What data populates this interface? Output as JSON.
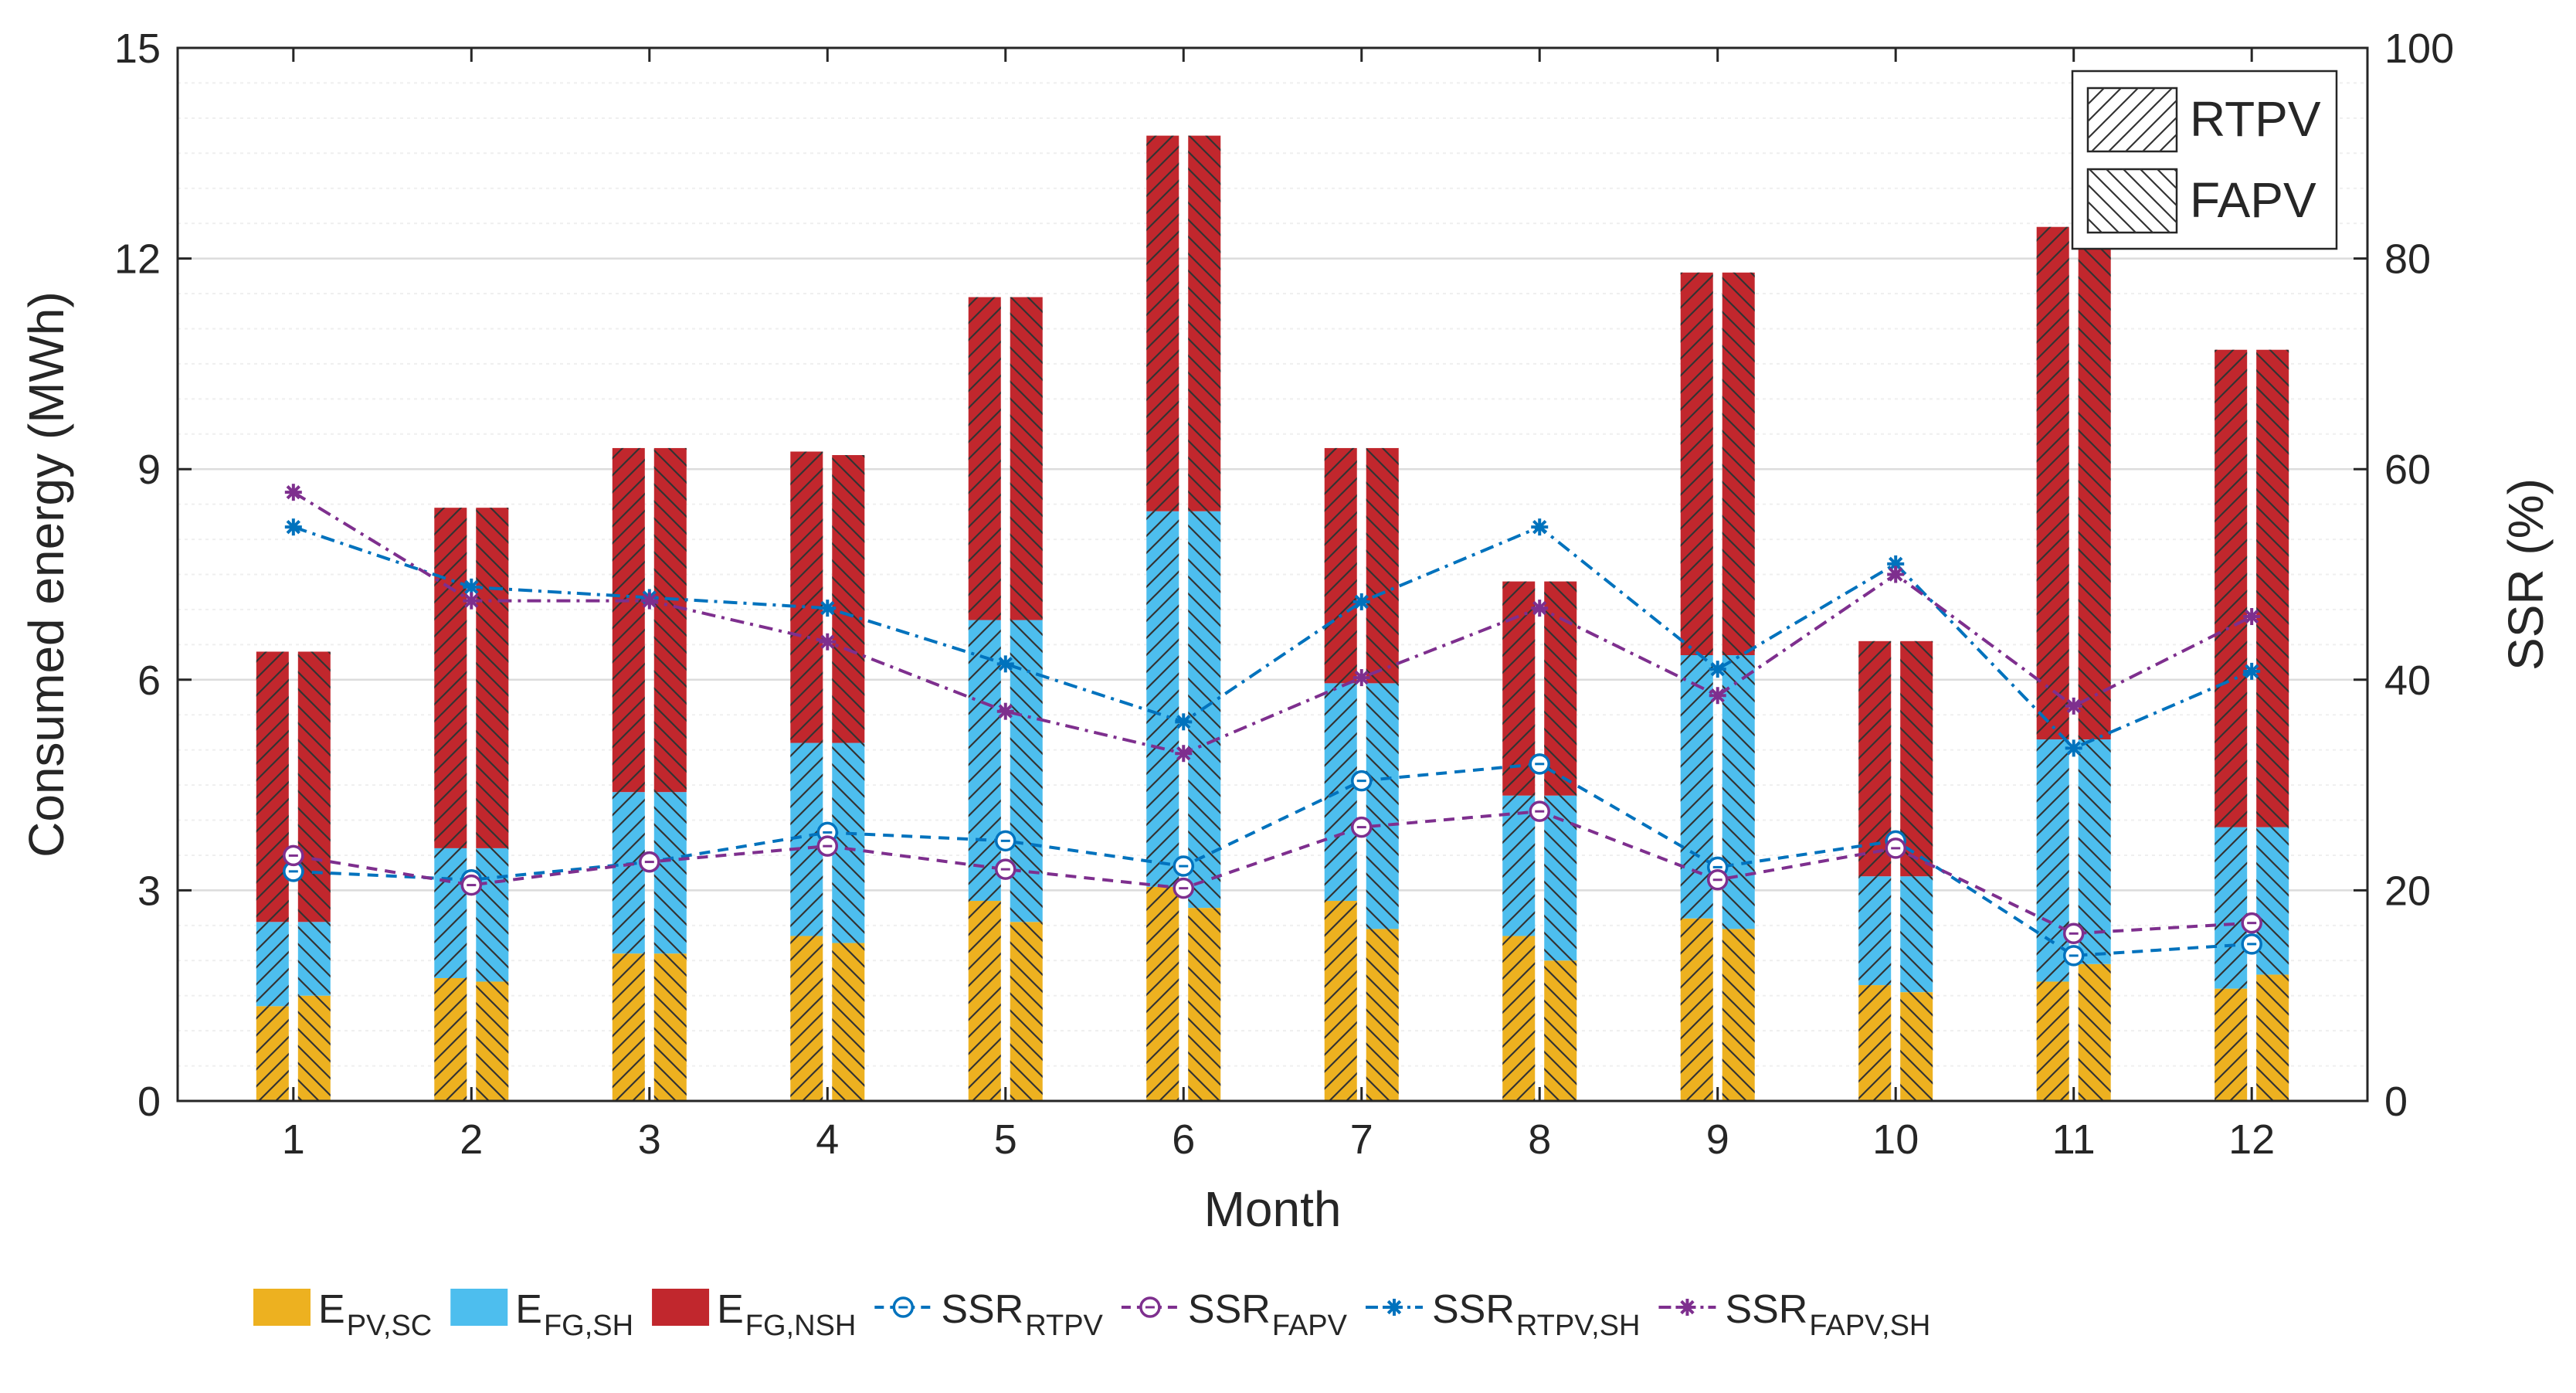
{
  "chart_data": {
    "type": "bar",
    "title": "",
    "xlabel": "Month",
    "ylabel": "Consumed energy (MWh)",
    "y2label": "SSR (%)",
    "categories": [
      "1",
      "2",
      "3",
      "4",
      "5",
      "6",
      "7",
      "8",
      "9",
      "10",
      "11",
      "12"
    ],
    "ylim": [
      0,
      15
    ],
    "y2lim": [
      0,
      100
    ],
    "yticks": [
      0,
      3,
      6,
      9,
      12,
      15
    ],
    "y2ticks": [
      0,
      20,
      40,
      60,
      80,
      100
    ],
    "grid": true,
    "minor_grid": true,
    "bar_groups": [
      {
        "name": "RTPV",
        "hatch": "forward",
        "stacks": [
          {
            "key": "pv_sc",
            "values": [
              1.35,
              1.75,
              2.1,
              2.35,
              2.85,
              3.05,
              2.85,
              2.35,
              2.6,
              1.65,
              1.7,
              1.6
            ]
          },
          {
            "key": "fg_sh",
            "values": [
              1.2,
              1.85,
              2.3,
              2.75,
              4.0,
              5.35,
              3.1,
              2.0,
              3.75,
              1.55,
              3.45,
              2.3
            ]
          },
          {
            "key": "fg_nsh",
            "values": [
              3.85,
              4.85,
              4.9,
              4.15,
              4.6,
              5.35,
              3.35,
              3.05,
              5.45,
              3.35,
              7.3,
              6.8
            ]
          }
        ]
      },
      {
        "name": "FAPV",
        "hatch": "backward",
        "stacks": [
          {
            "key": "pv_sc",
            "values": [
              1.5,
              1.7,
              2.1,
              2.25,
              2.55,
              2.75,
              2.45,
              2.0,
              2.45,
              1.55,
              1.95,
              1.8
            ]
          },
          {
            "key": "fg_sh",
            "values": [
              1.05,
              1.9,
              2.3,
              2.85,
              4.3,
              5.65,
              3.5,
              2.35,
              3.9,
              1.65,
              3.2,
              2.1
            ]
          },
          {
            "key": "fg_nsh",
            "values": [
              3.85,
              4.85,
              4.9,
              4.1,
              4.6,
              5.35,
              3.35,
              3.05,
              5.45,
              3.35,
              7.3,
              6.8
            ]
          }
        ]
      }
    ],
    "series": [
      {
        "name": "SSR_RTPV",
        "axis": "right",
        "style": "dashed",
        "marker": "circle",
        "color": "#0072BD",
        "values": [
          21.8,
          21.0,
          22.7,
          25.5,
          24.7,
          22.3,
          30.4,
          32.0,
          22.2,
          24.7,
          13.8,
          14.9
        ]
      },
      {
        "name": "SSR_FAPV",
        "axis": "right",
        "style": "dashed",
        "marker": "circle",
        "color": "#7E2F8E",
        "values": [
          23.3,
          20.5,
          22.7,
          24.2,
          22.0,
          20.2,
          26.0,
          27.5,
          21.0,
          24.0,
          15.9,
          16.9
        ]
      },
      {
        "name": "SSR_RTPV,SH",
        "axis": "right",
        "style": "dashdot",
        "marker": "asterisk",
        "color": "#0072BD",
        "values": [
          54.5,
          48.8,
          47.8,
          46.8,
          41.5,
          36.0,
          47.4,
          54.5,
          41.0,
          51.0,
          33.5,
          40.8
        ]
      },
      {
        "name": "SSR_FAPV,SH",
        "axis": "right",
        "style": "dashdot",
        "marker": "asterisk",
        "color": "#7E2F8E",
        "values": [
          57.8,
          47.5,
          47.5,
          43.6,
          37.0,
          33.0,
          40.2,
          46.8,
          38.5,
          50.0,
          37.5,
          46.0
        ]
      }
    ],
    "colors": {
      "pv_sc": "#EDB120",
      "fg_sh": "#4DBEEE",
      "fg_nsh": "#C1272D",
      "hatch": "#333333",
      "grid_major": "#DCDCDC",
      "grid_minor": "#EFEFEF",
      "axis": "#262626"
    },
    "legend_box": {
      "position": "top-right",
      "entries": [
        "RTPV",
        "FAPV"
      ]
    },
    "legend_bottom": {
      "position": "bottom",
      "entries": [
        {
          "key": "pv_sc",
          "main": "E",
          "sub": "PV,SC"
        },
        {
          "key": "fg_sh",
          "main": "E",
          "sub": "FG,SH"
        },
        {
          "key": "fg_nsh",
          "main": "E",
          "sub": "FG,NSH"
        },
        {
          "key": "SSR_RTPV",
          "main": "SSR",
          "sub": "RTPV"
        },
        {
          "key": "SSR_FAPV",
          "main": "SSR",
          "sub": "FAPV"
        },
        {
          "key": "SSR_RTPV,SH",
          "main": "SSR",
          "sub": "RTPV,SH"
        },
        {
          "key": "SSR_FAPV,SH",
          "main": "SSR",
          "sub": "FAPV,SH"
        }
      ]
    }
  }
}
